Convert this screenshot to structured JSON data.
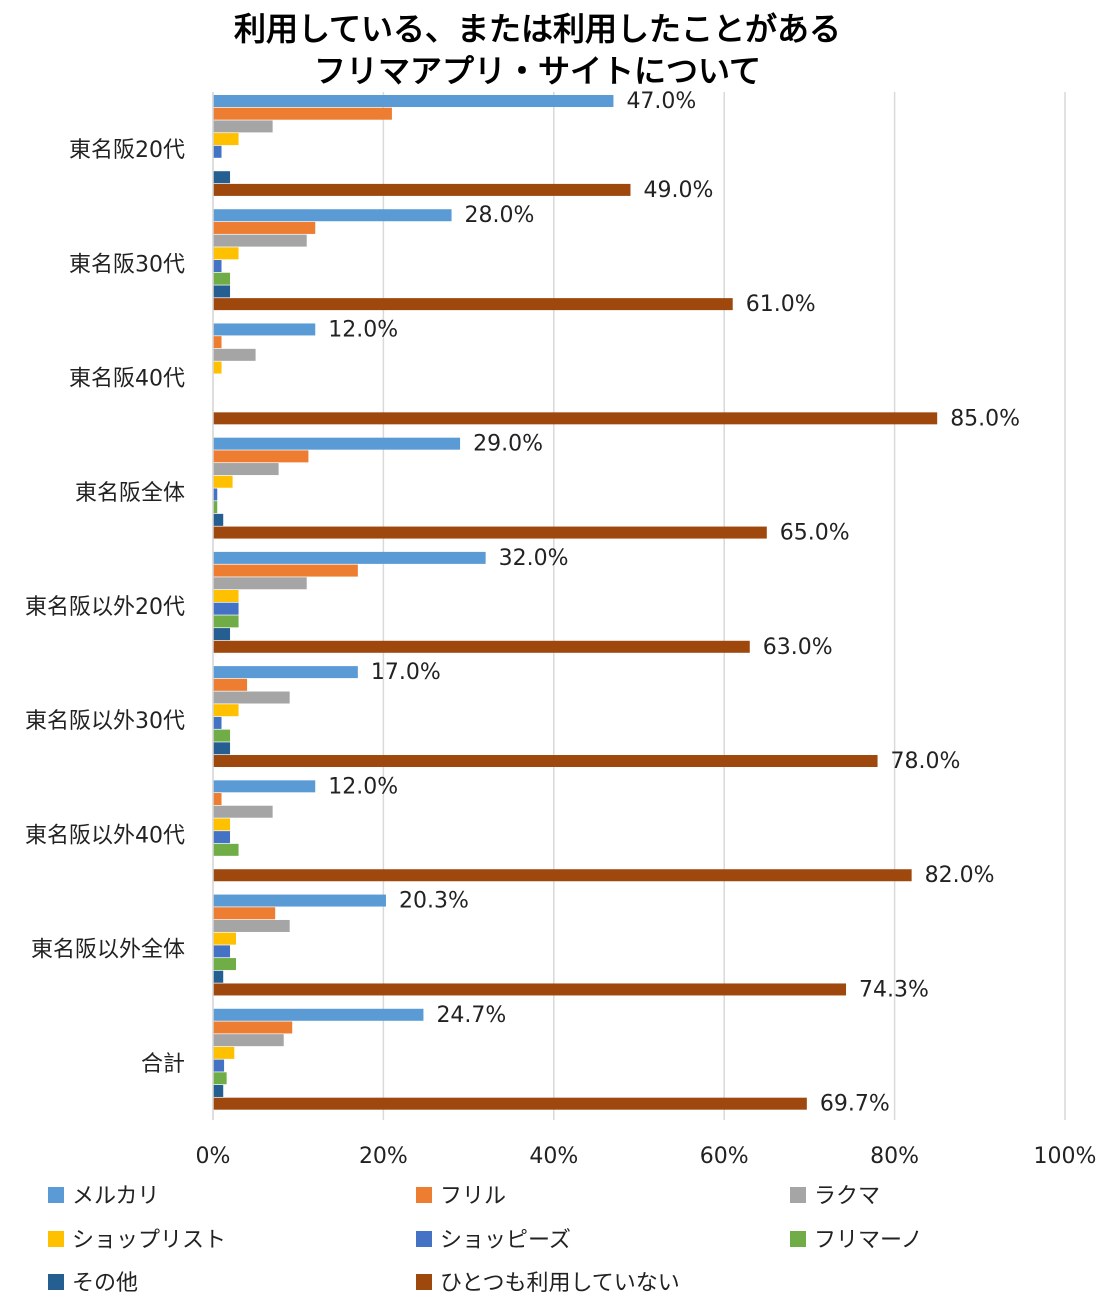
{
  "chart_data": {
    "type": "bar",
    "orientation": "horizontal",
    "title": [
      "利用している、または利用したことがある",
      "フリマアプリ・サイトについて"
    ],
    "categories": [
      "東名阪20代",
      "東名阪30代",
      "東名阪40代",
      "東名阪全体",
      "東名阪以外20代",
      "東名阪以外30代",
      "東名阪以外40代",
      "東名阪以外全体",
      "合計"
    ],
    "xlim": [
      0,
      100
    ],
    "x_ticks": [
      "0%",
      "20%",
      "40%",
      "60%",
      "80%",
      "100%"
    ],
    "grid": true,
    "legend_position": "bottom",
    "series": [
      {
        "name": "メルカリ",
        "color": "#5B9BD5",
        "values": [
          47.0,
          28.0,
          12.0,
          29.0,
          32.0,
          17.0,
          12.0,
          20.3,
          24.7
        ],
        "labels": [
          "47.0%",
          "28.0%",
          "12.0%",
          "29.0%",
          "32.0%",
          "17.0%",
          "12.0%",
          "20.3%",
          "24.7%"
        ]
      },
      {
        "name": "フリル",
        "color": "#ED7D31",
        "values": [
          21,
          12,
          1,
          11.2,
          17,
          4,
          1,
          7.3,
          9.3
        ]
      },
      {
        "name": "ラクマ",
        "color": "#A5A5A5",
        "values": [
          7,
          11,
          5,
          7.7,
          11,
          9,
          7,
          9,
          8.3
        ]
      },
      {
        "name": "ショップリスト",
        "color": "#FFC000",
        "values": [
          3,
          3,
          1,
          2.3,
          3,
          3,
          2,
          2.7,
          2.5
        ]
      },
      {
        "name": "ショッピーズ",
        "color": "#4472C4",
        "values": [
          1,
          1,
          0,
          0.5,
          3,
          1,
          2,
          2,
          1.3
        ]
      },
      {
        "name": "フリマーノ",
        "color": "#70AD47",
        "values": [
          0,
          2,
          0,
          0.5,
          3,
          2,
          3,
          2.7,
          1.6
        ]
      },
      {
        "name": "その他",
        "color": "#255E91",
        "values": [
          2,
          2,
          0,
          1.2,
          2,
          2,
          0,
          1.2,
          1.2
        ]
      },
      {
        "name": "ひとつも利用していない",
        "color": "#9E480E",
        "values": [
          49.0,
          61.0,
          85.0,
          65.0,
          63.0,
          78.0,
          82.0,
          74.3,
          69.7
        ],
        "labels": [
          "49.0%",
          "61.0%",
          "85.0%",
          "65.0%",
          "63.0%",
          "78.0%",
          "82.0%",
          "74.3%",
          "69.7%"
        ]
      }
    ]
  }
}
